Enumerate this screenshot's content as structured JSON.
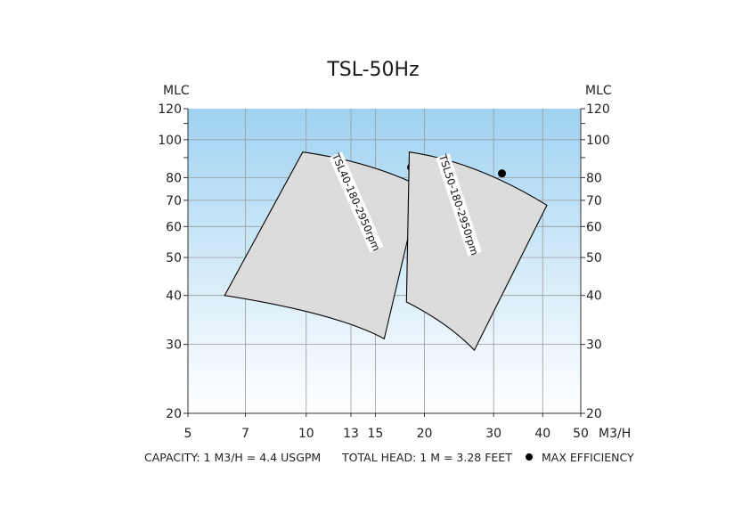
{
  "chart_data": {
    "type": "area",
    "title": "TSL-50Hz",
    "xlabel": "M3/H",
    "ylabel": "MLC",
    "ylabel_right": "MLC",
    "x_scale": "log",
    "y_scale": "log",
    "xlim": [
      5,
      50
    ],
    "ylim": [
      20,
      120
    ],
    "x_ticks": [
      5,
      7,
      10,
      13,
      15,
      20,
      30,
      40,
      50
    ],
    "y_ticks": [
      20,
      30,
      40,
      50,
      60,
      70,
      80,
      100,
      120
    ],
    "grid": true,
    "series": [
      {
        "name": "TSL40-180-2950rpm",
        "outline": [
          [
            9.8,
            93
          ],
          [
            14.5,
            88
          ],
          [
            19.5,
            76
          ],
          [
            15.8,
            31
          ],
          [
            12,
            36
          ],
          [
            6.2,
            40
          ]
        ],
        "max_efficiency": [
          18.5,
          85
        ]
      },
      {
        "name": "TSL50-180-2950rpm",
        "outline": [
          [
            18.3,
            93
          ],
          [
            27,
            88
          ],
          [
            41,
            68
          ],
          [
            26.8,
            29
          ],
          [
            23,
            34
          ],
          [
            18,
            38.5
          ]
        ],
        "max_efficiency": [
          31.5,
          82
        ]
      }
    ],
    "colors": {
      "background_gradient_top": "#9fd2f2",
      "background_gradient_bottom": "#ffffff",
      "region_fill": "#dcdcdc",
      "region_stroke": "#000000",
      "grid": "#9a9a9a"
    }
  },
  "footer": {
    "capacity": "CAPACITY: 1 M3/H = 4.4 USGPM",
    "total_head": "TOTAL HEAD: 1 M = 3.28 FEET",
    "legend_max_efficiency": "MAX EFFICIENCY"
  }
}
